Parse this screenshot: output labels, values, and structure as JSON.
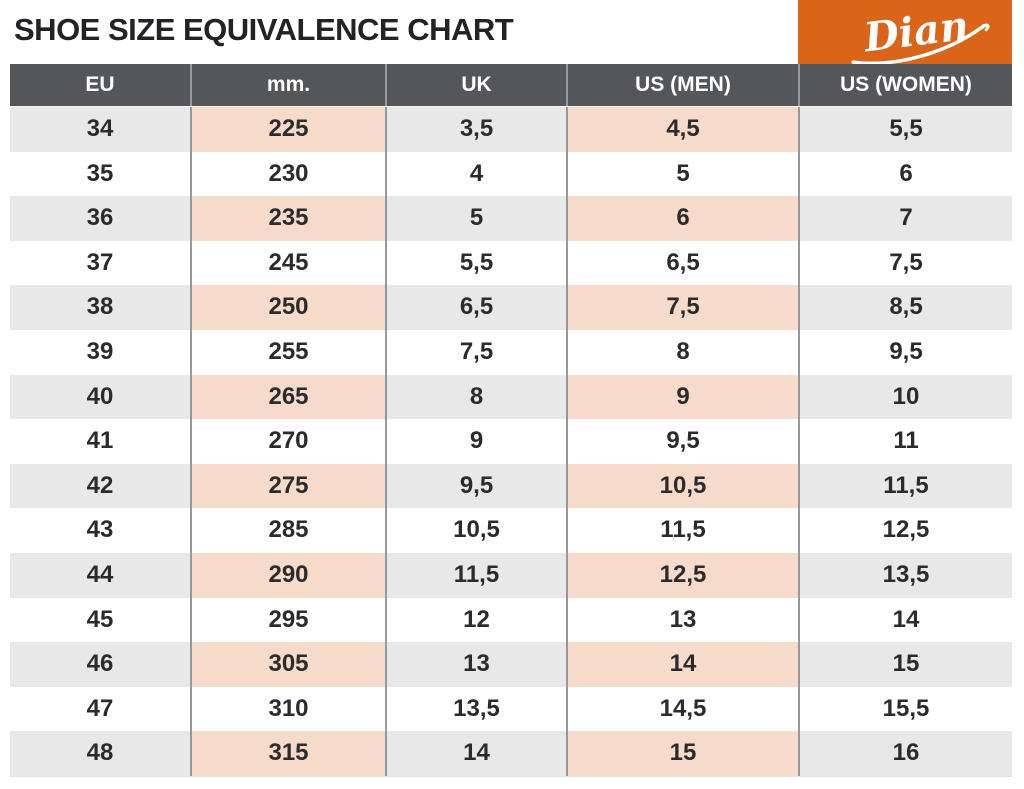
{
  "title": "SHOE SIZE EQUIVALENCE CHART",
  "logo": {
    "brand": "Dian",
    "bg_color": "#D9641A",
    "text_color": "#FFFFFF"
  },
  "colors": {
    "header_bg": "#55565A",
    "header_text": "#FFFFFF",
    "row_shade": "#E8E8E9",
    "row_plain": "#FFFFFF",
    "highlight_pink": "#F6DBCB",
    "divider": "#97989B",
    "body_text": "#2B2B2E"
  },
  "chart_data": {
    "type": "table",
    "title": "SHOE SIZE EQUIVALENCE CHART",
    "columns": [
      "EU",
      "mm.",
      "UK",
      "US (MEN)",
      "US (WOMEN)"
    ],
    "rows": [
      [
        "34",
        "225",
        "3,5",
        "4,5",
        "5,5"
      ],
      [
        "35",
        "230",
        "4",
        "5",
        "6"
      ],
      [
        "36",
        "235",
        "5",
        "6",
        "7"
      ],
      [
        "37",
        "245",
        "5,5",
        "6,5",
        "7,5"
      ],
      [
        "38",
        "250",
        "6,5",
        "7,5",
        "8,5"
      ],
      [
        "39",
        "255",
        "7,5",
        "8",
        "9,5"
      ],
      [
        "40",
        "265",
        "8",
        "9",
        "10"
      ],
      [
        "41",
        "270",
        "9",
        "9,5",
        "11"
      ],
      [
        "42",
        "275",
        "9,5",
        "10,5",
        "11,5"
      ],
      [
        "43",
        "285",
        "10,5",
        "11,5",
        "12,5"
      ],
      [
        "44",
        "290",
        "11,5",
        "12,5",
        "13,5"
      ],
      [
        "45",
        "295",
        "12",
        "13",
        "14"
      ],
      [
        "46",
        "305",
        "13",
        "14",
        "15"
      ],
      [
        "47",
        "310",
        "13,5",
        "14,5",
        "15,5"
      ],
      [
        "48",
        "315",
        "14",
        "15",
        "16"
      ]
    ],
    "layout_hints": {
      "shaded_rows": "every other row starting with first (EU 34)",
      "highlighted_columns_on_shaded_rows": [
        "mm.",
        "US (MEN)"
      ],
      "grid": "vertical dividers only"
    }
  }
}
